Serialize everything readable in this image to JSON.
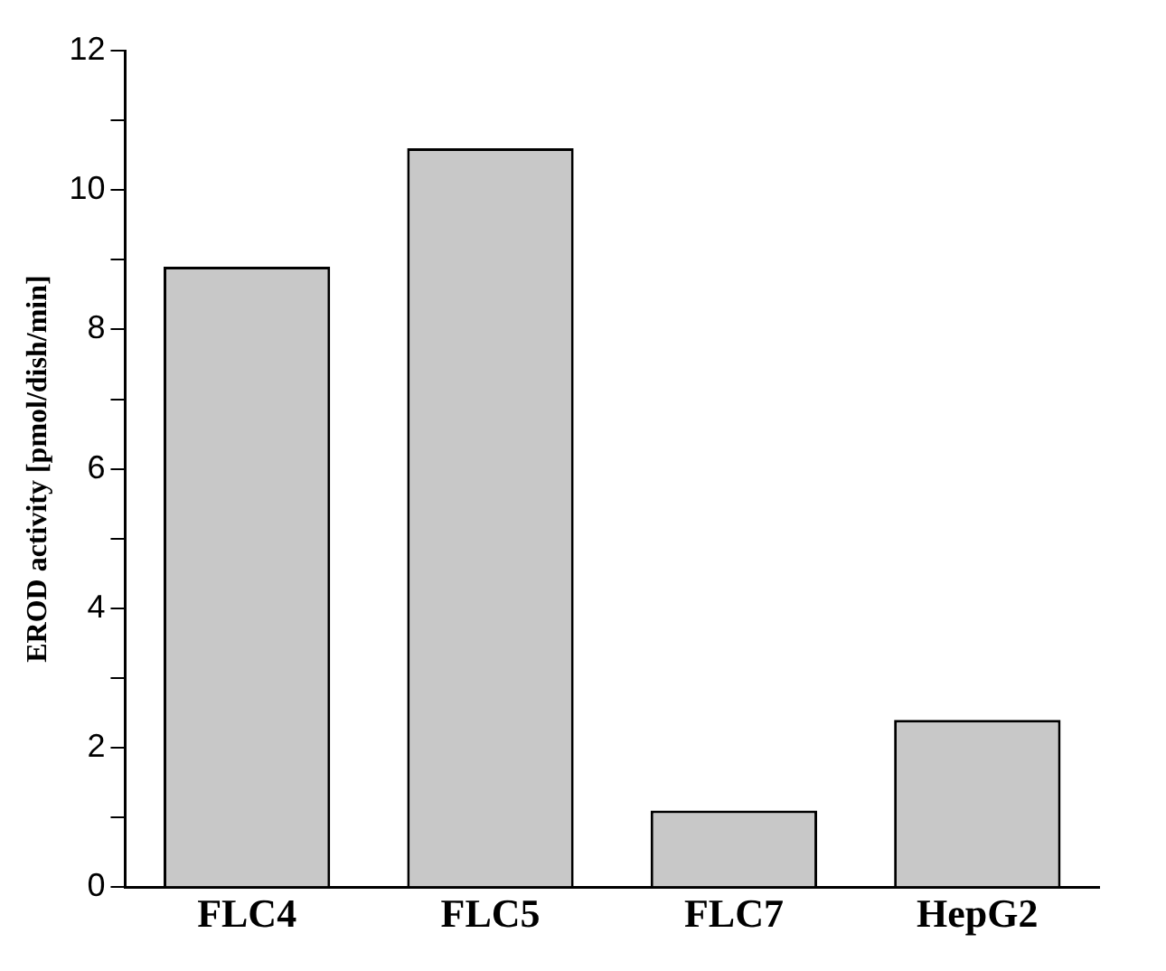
{
  "chart_data": {
    "type": "bar",
    "ylabel": "EROD activity [pmol/dish/min]",
    "categories": [
      "FLC4",
      "FLC5",
      "FLC7",
      "HepG2"
    ],
    "values": [
      8.9,
      10.6,
      1.1,
      2.4
    ],
    "color": "#c8c8c8",
    "ylim": [
      0,
      12
    ],
    "yticks": [
      0,
      {
        "value": 1,
        "label": null
      },
      2,
      {
        "value": 3,
        "label": null
      },
      4,
      {
        "value": 5,
        "label": null
      },
      6,
      {
        "value": 7,
        "label": null
      },
      8,
      {
        "value": 9,
        "label": null
      },
      10,
      {
        "value": 11,
        "label": null
      },
      12
    ],
    "grid": false,
    "legend": false
  }
}
